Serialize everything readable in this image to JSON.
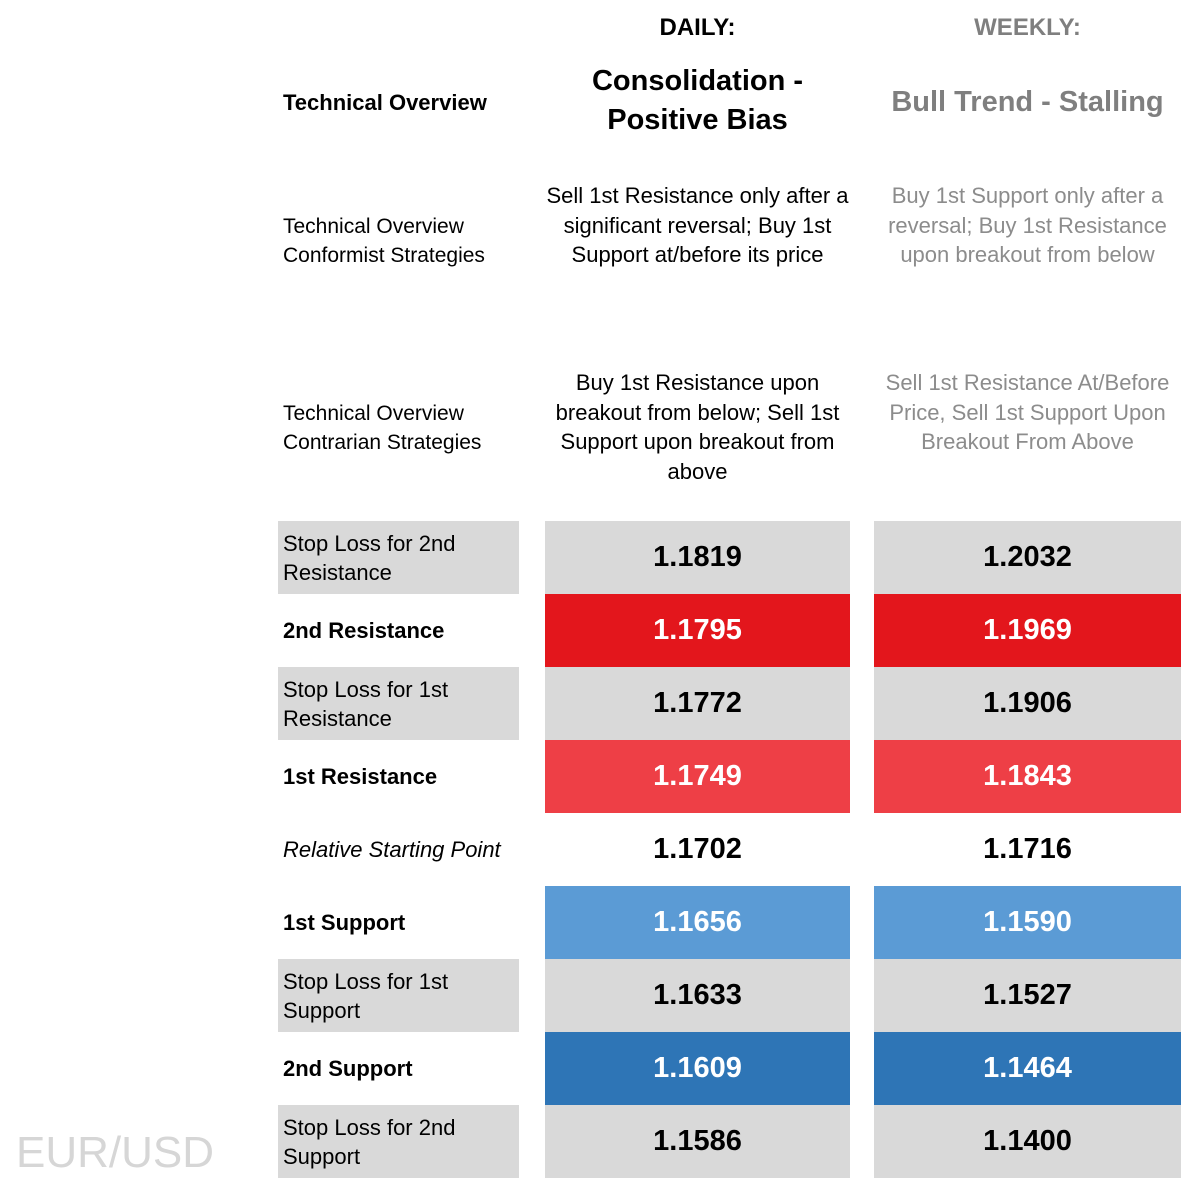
{
  "headers": {
    "daily": "DAILY:",
    "weekly": "WEEKLY:"
  },
  "overview": {
    "label": "Technical Overview",
    "daily": "Consolidation - Positive Bias",
    "weekly": "Bull Trend - Stalling"
  },
  "conformist": {
    "label": "Technical Overview Conformist Strategies",
    "daily": "Sell 1st Resistance only after a significant reversal; Buy 1st Support at/before its price",
    "weekly": "Buy 1st Support only after a reversal; Buy 1st Resistance upon breakout from below"
  },
  "contrarian": {
    "label": "Technical Overview Contrarian Strategies",
    "daily": "Buy 1st Resistance upon breakout from below; Sell 1st Support upon breakout from above",
    "weekly": "Sell 1st Resistance At/Before Price, Sell 1st Support Upon Breakout From Above"
  },
  "levels": [
    {
      "label": "Stop Loss for 2nd Resistance",
      "daily": "1.1819",
      "weekly": "1.2032"
    },
    {
      "label": "2nd Resistance",
      "daily": "1.1795",
      "weekly": "1.1969"
    },
    {
      "label": "Stop Loss for 1st Resistance",
      "daily": "1.1772",
      "weekly": "1.1906"
    },
    {
      "label": "1st Resistance",
      "daily": "1.1749",
      "weekly": "1.1843"
    },
    {
      "label": "Relative Starting Point",
      "daily": "1.1702",
      "weekly": "1.1716"
    },
    {
      "label": "1st Support",
      "daily": "1.1656",
      "weekly": "1.1590"
    },
    {
      "label": "Stop Loss for 1st Support",
      "daily": "1.1633",
      "weekly": "1.1527"
    },
    {
      "label": "2nd Support",
      "daily": "1.1609",
      "weekly": "1.1464"
    },
    {
      "label": "Stop Loss for 2nd Support",
      "daily": "1.1586",
      "weekly": "1.1400"
    }
  ],
  "colors": {
    "stop_loss": "#d9d9d9",
    "second_resistance": "#e3161c",
    "first_resistance": "#ee3f46",
    "first_support": "#5b9bd5",
    "second_support": "#2e75b6",
    "weekly_text": "#7f7f7f"
  },
  "watermark": "EUR/USD"
}
